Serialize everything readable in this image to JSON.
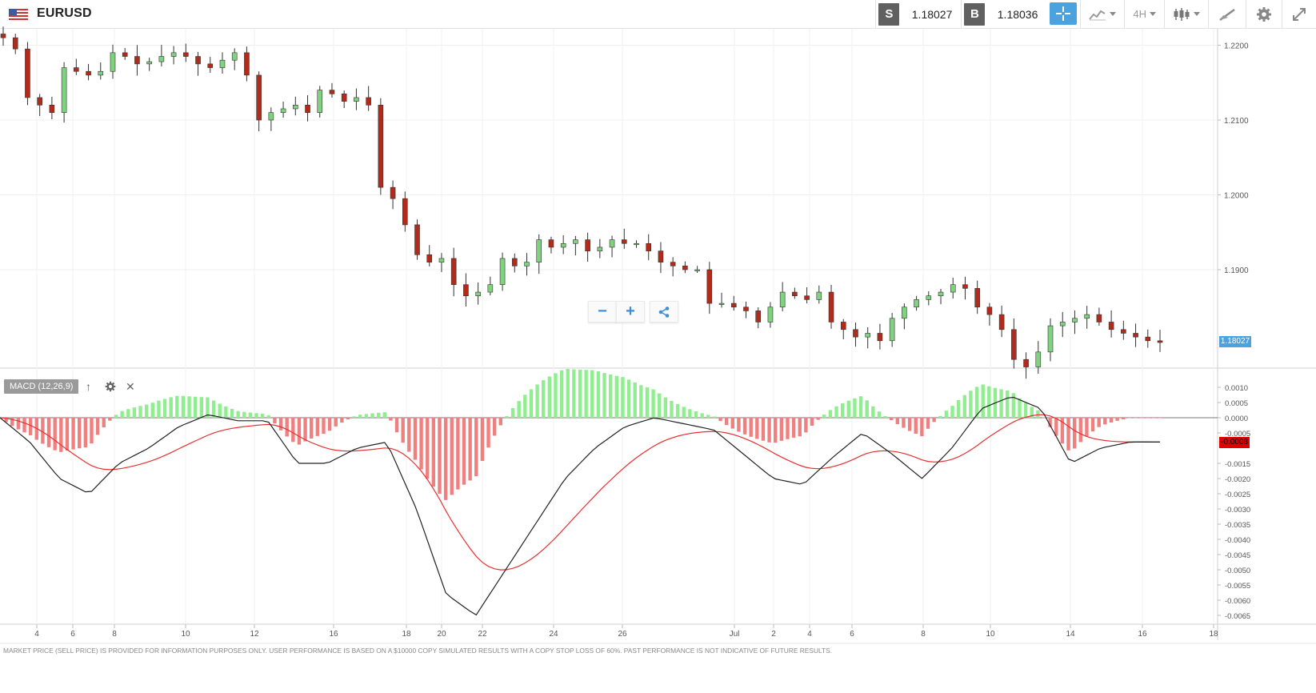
{
  "header": {
    "symbol": "EURUSD",
    "sell_label": "S",
    "sell_price": "1.18027",
    "buy_label": "B",
    "buy_price": "1.18036",
    "timeframe": "4H",
    "icons": [
      "us-flag-icon",
      "crosshair-icon",
      "line-chart-icon",
      "candlestick-icon",
      "drawing-icon",
      "gear-icon",
      "expand-icon"
    ]
  },
  "zoom_controls": {
    "minus": "−",
    "plus": "+",
    "share_icon": "share-icon"
  },
  "indicator": {
    "label": "MACD (12,26,9)",
    "up_icon": "↑",
    "settings_icon": "gear-icon",
    "close_icon": "✕"
  },
  "price_axis": {
    "ticks": [
      "1.2200",
      "1.2100",
      "1.2000",
      "1.1900"
    ],
    "current": "1.18027"
  },
  "macd_axis": {
    "ticks": [
      "0.0010",
      "0.0005",
      "0.0000",
      "-0.0005",
      "-0.0015",
      "-0.0020",
      "-0.0025",
      "-0.0030",
      "-0.0035",
      "-0.0040",
      "-0.0045",
      "-0.0050",
      "-0.0055",
      "-0.0060",
      "-0.0065"
    ],
    "current": "-0.0008"
  },
  "time_axis": {
    "ticks": [
      "4",
      "6",
      "8",
      "10",
      "12",
      "16",
      "18",
      "20",
      "22",
      "24",
      "26",
      "Jul",
      "2",
      "4",
      "6",
      "8",
      "10",
      "14",
      "16",
      "18"
    ]
  },
  "footer": {
    "disclaimer": "MARKET PRICE (SELL PRICE) IS PROVIDED FOR INFORMATION PURPOSES ONLY. USER PERFORMANCE IS BASED ON A $10000 COPY SIMULATED RESULTS WITH A COPY STOP LOSS OF 60%. PAST PERFORMANCE IS NOT INDICATIVE OF FUTURE RESULTS."
  },
  "colors": {
    "up": "#7fd37f",
    "down": "#b22a1a",
    "hist_up": "#90ee90",
    "hist_down": "#f08080",
    "macd_line": "#222222",
    "signal_line": "#e83030",
    "accent": "#4aa3df"
  },
  "chart_data": {
    "type": "candlestick",
    "price_close_path": [
      1.221,
      1.2195,
      1.213,
      1.212,
      1.211,
      1.217,
      1.2165,
      1.216,
      1.2165,
      1.219,
      1.2185,
      1.2175,
      1.2178,
      1.2185,
      1.219,
      1.2185,
      1.2175,
      1.217,
      1.218,
      1.219,
      1.216,
      1.21,
      1.211,
      1.2115,
      1.212,
      1.211,
      1.214,
      1.2135,
      1.2125,
      1.213,
      1.212,
      1.201,
      1.1995,
      1.196,
      1.192,
      1.191,
      1.1915,
      1.188,
      1.1865,
      1.187,
      1.188,
      1.1915,
      1.1905,
      1.191,
      1.194,
      1.193,
      1.1935,
      1.194,
      1.1925,
      1.193,
      1.194,
      1.1935,
      1.1935,
      1.1925,
      1.191,
      1.1905,
      1.19,
      1.19,
      1.1855,
      1.1855,
      1.185,
      1.1845,
      1.183,
      1.185,
      1.187,
      1.1865,
      1.186,
      1.187,
      1.183,
      1.182,
      1.181,
      1.1815,
      1.1805,
      1.1835,
      1.185,
      1.186,
      1.1865,
      1.187,
      1.188,
      1.1875,
      1.185,
      1.184,
      1.182,
      1.178,
      1.177,
      1.179,
      1.1825,
      1.183,
      1.1835,
      1.184,
      1.183,
      1.182,
      1.1815,
      1.181,
      1.1805,
      1.18027
    ],
    "macd_approx": [
      0.0,
      -0.0008,
      -0.002,
      -0.0025,
      -0.0015,
      -0.001,
      -0.0003,
      0.0001,
      -0.0001,
      -0.0001,
      -0.0015,
      -0.0015,
      -0.001,
      -0.0008,
      -0.003,
      -0.0058,
      -0.0065,
      -0.005,
      -0.0035,
      -0.002,
      -0.001,
      -0.0003,
      0.0,
      -0.0002,
      -0.0004,
      -0.0012,
      -0.002,
      -0.0022,
      -0.0013,
      -0.0005,
      -0.0012,
      -0.002,
      -0.001,
      0.0003,
      0.0007,
      0.0003,
      -0.0015,
      -0.001,
      -0.0008,
      -0.0008
    ]
  }
}
